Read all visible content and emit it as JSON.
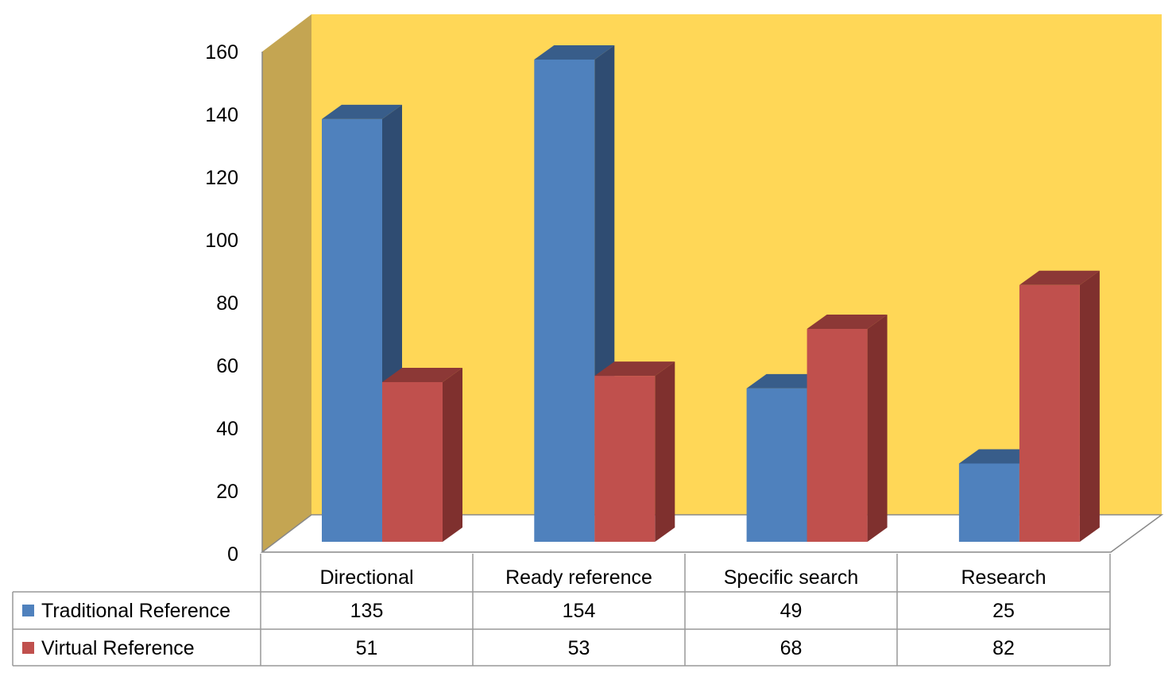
{
  "chart_data": {
    "type": "bar",
    "style": "3d-clustered-column-with-data-table",
    "title": "",
    "xlabel": "",
    "ylabel": "",
    "ylim": [
      0,
      160
    ],
    "yticks": [
      "0",
      "20",
      "40",
      "60",
      "80",
      "100",
      "120",
      "140",
      "160"
    ],
    "categories": [
      "Directional",
      "Ready reference",
      "Specific search",
      "Research"
    ],
    "series": [
      {
        "name": "Traditional Reference",
        "values": [
          135,
          154,
          49,
          25
        ],
        "color": "#4F81BD",
        "top": "#385D8A",
        "side": "#2F4C72"
      },
      {
        "name": "Virtual Reference",
        "values": [
          51,
          53,
          68,
          82
        ],
        "color": "#C0504D",
        "top": "#8C3836",
        "side": "#7F302E"
      }
    ],
    "back_wall_color": "#FFD757",
    "side_wall_color": "#C4A552",
    "legend": "data-table"
  }
}
